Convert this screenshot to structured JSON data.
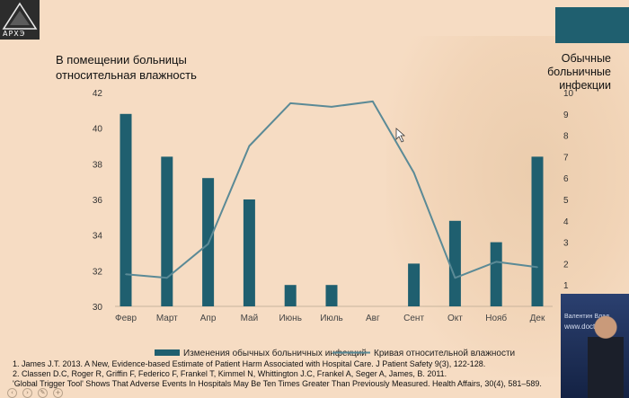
{
  "logo": {
    "text": "АРХЭ"
  },
  "left_axis_title_line1": "В помещении больницы",
  "left_axis_title_line2": "относительная влажность",
  "right_axis_title_line1": "Обычные",
  "right_axis_title_line2": "больничные",
  "right_axis_title_line3": "инфекции",
  "chart_data": {
    "type": "bar+line",
    "categories": [
      "Февр",
      "Март",
      "Апр",
      "Май",
      "Июнь",
      "Июль",
      "Авг",
      "Сент",
      "Окт",
      "Нояб",
      "Дек"
    ],
    "series": [
      {
        "name": "Изменения обычных больничных инфекций",
        "type": "bar",
        "axis": "right",
        "values": [
          9.0,
          7.0,
          6.0,
          5.0,
          1.0,
          1.0,
          0,
          2.0,
          4.0,
          3.0,
          7.0
        ]
      },
      {
        "name": "Кривая относительной влажности",
        "type": "line",
        "axis": "left",
        "values": [
          31.8,
          31.6,
          33.5,
          39.0,
          41.4,
          41.2,
          41.5,
          37.5,
          31.6,
          32.5,
          32.2
        ]
      }
    ],
    "left_axis": {
      "ylim": [
        30,
        42
      ],
      "ticks": [
        30,
        32,
        34,
        36,
        38,
        40,
        42
      ]
    },
    "right_axis": {
      "ylim": [
        0,
        10
      ],
      "ticks": [
        0,
        1,
        2,
        3,
        4,
        5,
        6,
        7,
        8,
        9,
        10
      ]
    },
    "colors": {
      "bar": "#1f5f6f",
      "line": "#5b8a96"
    },
    "grid": false,
    "legend_position": "bottom"
  },
  "footnotes": [
    "1. James J.T. 2013. A New, Evidence-based Estimate of Patient Harm Associated with Hospital Care. J Patient Safety 9(3), 122-128.",
    "2. Classen D.C, Roger R, Griffin F, Federico F, Frankel T, Kimmel N, Whittington J.C, Frankel A, Seger A, James, B. 2011.",
    "'Global Trigger Tool' Shows That Adverse Events In Hospitals May Be Ten Times Greater Than Previously Measured. Health Affairs, 30(4), 581–589."
  ],
  "video": {
    "line1": "Валентин Влад",
    "line2": "www.doct"
  }
}
